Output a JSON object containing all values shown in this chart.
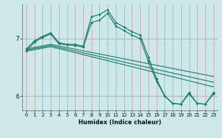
{
  "xlabel": "Humidex (Indice chaleur)",
  "bg_color": "#cce8e8",
  "line_color": "#1a7a6e",
  "grid_v_color": "#c87878",
  "grid_h_color": "#aaaaaa",
  "xlim": [
    -0.5,
    23.5
  ],
  "ylim": [
    5.75,
    7.6
  ],
  "yticks": [
    6,
    7
  ],
  "xticks": [
    0,
    1,
    2,
    3,
    4,
    5,
    6,
    7,
    8,
    9,
    10,
    11,
    12,
    13,
    14,
    15,
    16,
    17,
    18,
    19,
    20,
    21,
    22,
    23
  ],
  "curve1_x": [
    0,
    1,
    2,
    3,
    4,
    5,
    6,
    7,
    8,
    9,
    10,
    11,
    12,
    13,
    14,
    15,
    16,
    17,
    18,
    19,
    20,
    21,
    22,
    23
  ],
  "curve1_y": [
    6.82,
    6.96,
    7.04,
    7.1,
    6.93,
    6.9,
    6.9,
    6.87,
    7.38,
    7.42,
    7.5,
    7.28,
    7.2,
    7.12,
    7.06,
    6.68,
    6.3,
    6.0,
    5.87,
    5.86,
    6.06,
    5.87,
    5.86,
    6.06
  ],
  "curve2_x": [
    0,
    1,
    2,
    3,
    4,
    5,
    6,
    7,
    8,
    9,
    10,
    11,
    12,
    13,
    14,
    15,
    16,
    17,
    18,
    19,
    20,
    21,
    22,
    23
  ],
  "curve2_y": [
    6.78,
    6.94,
    7.02,
    7.08,
    6.91,
    6.89,
    6.88,
    6.85,
    7.28,
    7.32,
    7.44,
    7.22,
    7.14,
    7.06,
    7.0,
    6.6,
    6.26,
    6.0,
    5.87,
    5.86,
    6.04,
    5.87,
    5.86,
    6.04
  ],
  "line1_x": [
    0,
    3,
    23
  ],
  "line1_y": [
    6.82,
    6.9,
    6.34
  ],
  "line2_x": [
    0,
    3,
    23
  ],
  "line2_y": [
    6.8,
    6.88,
    6.24
  ],
  "line3_x": [
    0,
    3,
    23
  ],
  "line3_y": [
    6.78,
    6.86,
    6.16
  ]
}
